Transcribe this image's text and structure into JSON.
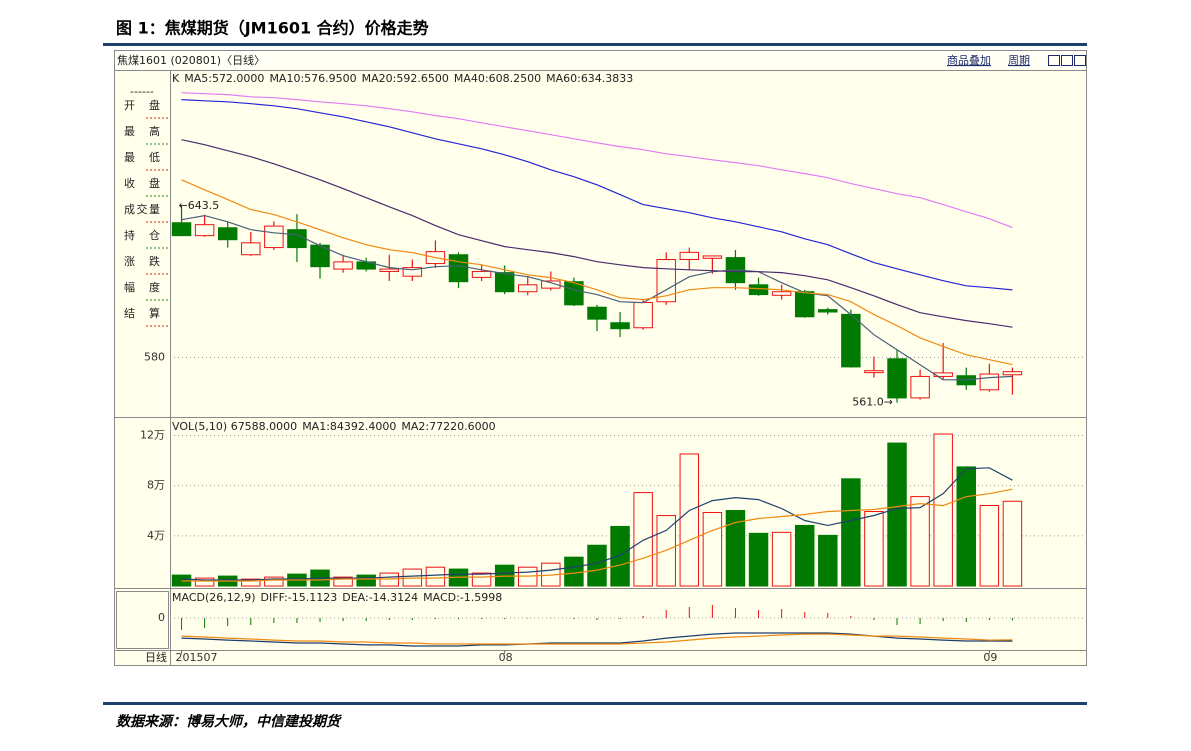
{
  "header": {
    "title": "图 1：焦煤期货（JM1601 合约）价格走势"
  },
  "toolbar": {
    "symbol": "焦煤1601 (020801)〈日线〉",
    "buttons": [
      "商品叠加",
      "周期"
    ]
  },
  "sidebar": {
    "labels": [
      "开盘",
      "最高",
      "最低",
      "收盘",
      "成交量",
      "持仓",
      "涨跌",
      "幅度",
      "结算"
    ]
  },
  "period_label": "日线",
  "source": "数据来源：博易大师，中信建投期货",
  "chart_data": [
    {
      "type": "candlestick",
      "label": "K",
      "categories": [
        "201507",
        null,
        null,
        null,
        null,
        null,
        null,
        null,
        null,
        null,
        null,
        null,
        null,
        null,
        "08",
        null,
        null,
        null,
        null,
        null,
        null,
        null,
        null,
        null,
        null,
        null,
        null,
        null,
        null,
        null,
        null,
        null,
        null,
        null,
        null,
        "09",
        null
      ],
      "open": [
        636.4,
        631,
        634.3,
        623,
        626,
        633.5,
        627,
        617,
        620,
        616,
        614,
        619.3,
        623,
        613.5,
        615.5,
        607.5,
        609,
        611.7,
        601,
        594.5,
        592.4,
        603.3,
        621,
        621.5,
        621.8,
        610.4,
        606,
        607.5,
        600,
        598,
        573.6,
        579.4,
        563,
        572,
        572.3,
        566.4,
        572.7
      ],
      "high": [
        643.5,
        639.8,
        637,
        632.5,
        637,
        640,
        628,
        623,
        621.8,
        623,
        621,
        629,
        624,
        619,
        618.5,
        614,
        616,
        613.4,
        602,
        599,
        604,
        624,
        626,
        622.6,
        625,
        613.4,
        610.4,
        608.3,
        600.8,
        600,
        580.3,
        583,
        574.8,
        586,
        575.7,
        577.3,
        575.7
      ],
      "low": [
        631,
        630.5,
        626,
        622.5,
        625,
        620,
        613,
        615.5,
        616,
        612,
        612,
        617.5,
        609,
        612,
        606.5,
        606,
        608,
        601.5,
        591,
        588.5,
        591.6,
        602,
        616.7,
        615,
        608.3,
        605.8,
        604.2,
        596.6,
        597.9,
        575.7,
        571.5,
        561,
        562.3,
        570.6,
        566.4,
        565.6,
        564.4
      ],
      "close": [
        631,
        635.6,
        629.3,
        628,
        635,
        626,
        618,
        620,
        617,
        617,
        617.6,
        624.3,
        611.7,
        616,
        607.5,
        610.4,
        612,
        602,
        596,
        592,
        603,
        621,
        624,
        622.5,
        611.3,
        606.3,
        607.5,
        597,
        599,
        576,
        574.4,
        563,
        572,
        573.5,
        568.5,
        573,
        574
      ],
      "up_color": "#ee1111",
      "down_color": "#007a00",
      "high_label": "←643.5",
      "low_label": "561.0→",
      "series": [
        {
          "name": "MA5:572.0000",
          "color": "#4a5f78",
          "values": [
            637.7,
            639.4,
            636.8,
            633.5,
            632.2,
            631.4,
            626.8,
            622.6,
            620.1,
            617.6,
            616.7,
            618.0,
            618.4,
            616.7,
            615.1,
            613.8,
            611.3,
            608.3,
            606.3,
            603.3,
            602.9,
            608.3,
            613.8,
            615.9,
            616.7,
            615.9,
            611.3,
            607.1,
            605.8,
            597.9,
            589.5,
            583.2,
            576.9,
            570.6,
            570.6,
            571.5,
            572.0
          ]
        },
        {
          "name": "MA10:576.9500",
          "color": "#f08a10",
          "values": [
            654.4,
            650.2,
            646.1,
            641.9,
            639.8,
            636.8,
            633.5,
            630.1,
            627.2,
            625.1,
            623.9,
            621.8,
            620.1,
            618.8,
            616.7,
            614.6,
            613.4,
            611.3,
            608.3,
            605.0,
            604.2,
            605.8,
            608.3,
            609.2,
            609.2,
            608.8,
            608.3,
            607.1,
            606.3,
            603.3,
            597.9,
            593.3,
            588.2,
            584.5,
            581.1,
            579.0,
            576.95
          ]
        },
        {
          "name": "MA20:592.6500",
          "color": "#4b2a6b",
          "values": [
            671.2,
            669.1,
            666.6,
            664.1,
            661.1,
            657.8,
            654.4,
            650.7,
            646.9,
            643.1,
            639.4,
            635.2,
            631.4,
            628.9,
            626.4,
            625.1,
            623.9,
            622.2,
            620.1,
            618.8,
            617.6,
            617.1,
            616.7,
            616.3,
            615.9,
            615.9,
            615.5,
            614.2,
            612.5,
            609.2,
            605.8,
            602.1,
            598.7,
            597.0,
            595.4,
            594.1,
            592.65
          ]
        },
        {
          "name": "MA40:608.2500",
          "color": "#2626d6",
          "values": [
            688.0,
            687.5,
            687.1,
            686.3,
            685.4,
            684.2,
            682.5,
            680.8,
            678.7,
            676.6,
            674.1,
            671.6,
            669.5,
            667.4,
            664.9,
            662.0,
            658.6,
            655.7,
            652.3,
            648.2,
            644.0,
            642.3,
            640.6,
            638.5,
            636.8,
            634.7,
            632.6,
            629.7,
            627.2,
            623.4,
            619.7,
            617.1,
            614.6,
            612.1,
            610.0,
            609.2,
            608.25
          ]
        },
        {
          "name": "MA60:634.3833",
          "color": "#e27cf2",
          "values": [
            690.9,
            690.5,
            690.1,
            689.2,
            688.8,
            688.0,
            687.1,
            686.3,
            685.4,
            684.2,
            682.9,
            681.3,
            680.0,
            678.3,
            676.6,
            675.0,
            673.3,
            671.6,
            669.9,
            668.3,
            667.0,
            665.3,
            664.1,
            662.8,
            661.6,
            660.3,
            658.6,
            657.0,
            655.3,
            652.8,
            650.7,
            648.6,
            646.9,
            644.0,
            641.0,
            638.1,
            634.3833
          ]
        }
      ],
      "ylim": [
        555,
        700
      ],
      "yticks": [
        580
      ],
      "grid": true
    },
    {
      "type": "bar",
      "label": "VOL(5,10) 67588.0000",
      "values": [
        8700,
        6300,
        7900,
        5500,
        7100,
        9500,
        12700,
        7100,
        8700,
        10300,
        13500,
        15000,
        13500,
        10300,
        16600,
        15000,
        18200,
        23000,
        32500,
        47500,
        74500,
        56200,
        105300,
        58600,
        60200,
        42000,
        42800,
        48300,
        40400,
        85500,
        59400,
        114000,
        71300,
        121200,
        95000,
        64200,
        67588
      ],
      "series": [
        {
          "name": "MA1:84392.4000",
          "color": "#22406e",
          "values": [
            5544,
            4752,
            4752,
            4752,
            5544,
            5544,
            6336,
            6336,
            6336,
            7128,
            7920,
            8712,
            9504,
            9504,
            10296,
            11088,
            12672,
            15048,
            18216,
            24552,
            36432,
            44352,
            60192,
            68112,
            70488,
            68904,
            61776,
            52272,
            48312,
            52272,
            56232,
            61776,
            62568,
            73656,
            93456,
            94248,
            84392.4
          ]
        },
        {
          "name": "MA2:77220.6000",
          "color": "#f08a10",
          "values": [
            3960,
            3960,
            3960,
            3960,
            4752,
            4752,
            4752,
            5544,
            5544,
            5544,
            6336,
            6336,
            7128,
            7128,
            7920,
            7920,
            8712,
            10296,
            12672,
            16632,
            22176,
            28512,
            36432,
            44352,
            50688,
            53856,
            55440,
            57024,
            59400,
            60192,
            60984,
            63360,
            65736,
            64152,
            71280,
            73656,
            77220.6
          ]
        }
      ],
      "ylim": [
        0,
        134000
      ],
      "yticks": [
        {
          "value": 40000,
          "label": "4万"
        },
        {
          "value": 80000,
          "label": "8万"
        },
        {
          "value": 120000,
          "label": "12万"
        }
      ],
      "grid": true
    },
    {
      "type": "macd",
      "label": "MACD(26,12,9)",
      "series": [
        {
          "name": "DIFF:-15.1123",
          "type": "line",
          "color": "#1d3d6e",
          "values": [
            -13.1,
            -13.7,
            -14.4,
            -15.0,
            -15.7,
            -16.3,
            -16.3,
            -17.0,
            -17.6,
            -17.6,
            -18.3,
            -18.3,
            -18.3,
            -17.6,
            -17.6,
            -17.0,
            -16.3,
            -16.3,
            -16.3,
            -16.3,
            -15.0,
            -13.1,
            -11.8,
            -10.5,
            -9.8,
            -9.8,
            -9.8,
            -9.8,
            -9.8,
            -10.5,
            -11.8,
            -13.1,
            -13.7,
            -14.4,
            -15.0,
            -15.0,
            -15.1123
          ]
        },
        {
          "name": "DEA:-14.3124",
          "type": "line",
          "color": "#f08a10",
          "values": [
            -11.8,
            -12.4,
            -13.1,
            -13.7,
            -14.4,
            -15.0,
            -15.0,
            -15.7,
            -15.7,
            -16.3,
            -16.3,
            -17.0,
            -17.0,
            -17.0,
            -17.0,
            -17.0,
            -17.0,
            -17.0,
            -17.0,
            -17.0,
            -16.3,
            -15.7,
            -14.4,
            -13.1,
            -12.4,
            -11.8,
            -11.1,
            -10.5,
            -10.5,
            -11.1,
            -11.8,
            -11.8,
            -12.4,
            -13.1,
            -13.7,
            -14.4,
            -14.3124
          ]
        },
        {
          "name": "MACD:-1.5998",
          "type": "bar",
          "color": "#333333",
          "values": [
            -7.8,
            -6.5,
            -5.2,
            -4.6,
            -3.3,
            -3.3,
            -2.6,
            -2.0,
            -2.0,
            -1.3,
            -1.3,
            -0.7,
            -0.7,
            -0.7,
            -0.7,
            -0.3,
            -0.3,
            -0.7,
            -1.3,
            -0.7,
            1.3,
            5.2,
            7.2,
            8.5,
            6.5,
            5.2,
            5.9,
            3.9,
            3.3,
            1.3,
            -1.3,
            -4.6,
            -3.9,
            -2.0,
            -2.6,
            -1.3,
            -1.5998
          ]
        }
      ],
      "up_color": "#ee1111",
      "down_color": "#007a00",
      "ylim": [
        -20.9,
        18.3
      ],
      "yticks": [
        0
      ],
      "grid": true
    }
  ]
}
